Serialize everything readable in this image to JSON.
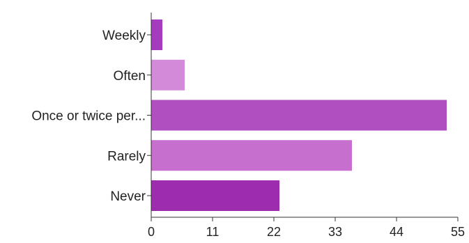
{
  "chart_data": {
    "type": "bar",
    "orientation": "horizontal",
    "title": "",
    "xlabel": "",
    "ylabel": "",
    "categories": [
      "Weekly",
      "Often",
      "Once or twice per...",
      "Rarely",
      "Never"
    ],
    "values": [
      2,
      6,
      53,
      36,
      23
    ],
    "colors": [
      "#a53cbe",
      "#d38ad9",
      "#b04fc0",
      "#c66fce",
      "#9d2cae"
    ],
    "xlim": [
      0,
      55
    ],
    "xticks": [
      "0",
      "11",
      "22",
      "33",
      "44",
      "55"
    ],
    "grid": false,
    "legend": "none"
  }
}
